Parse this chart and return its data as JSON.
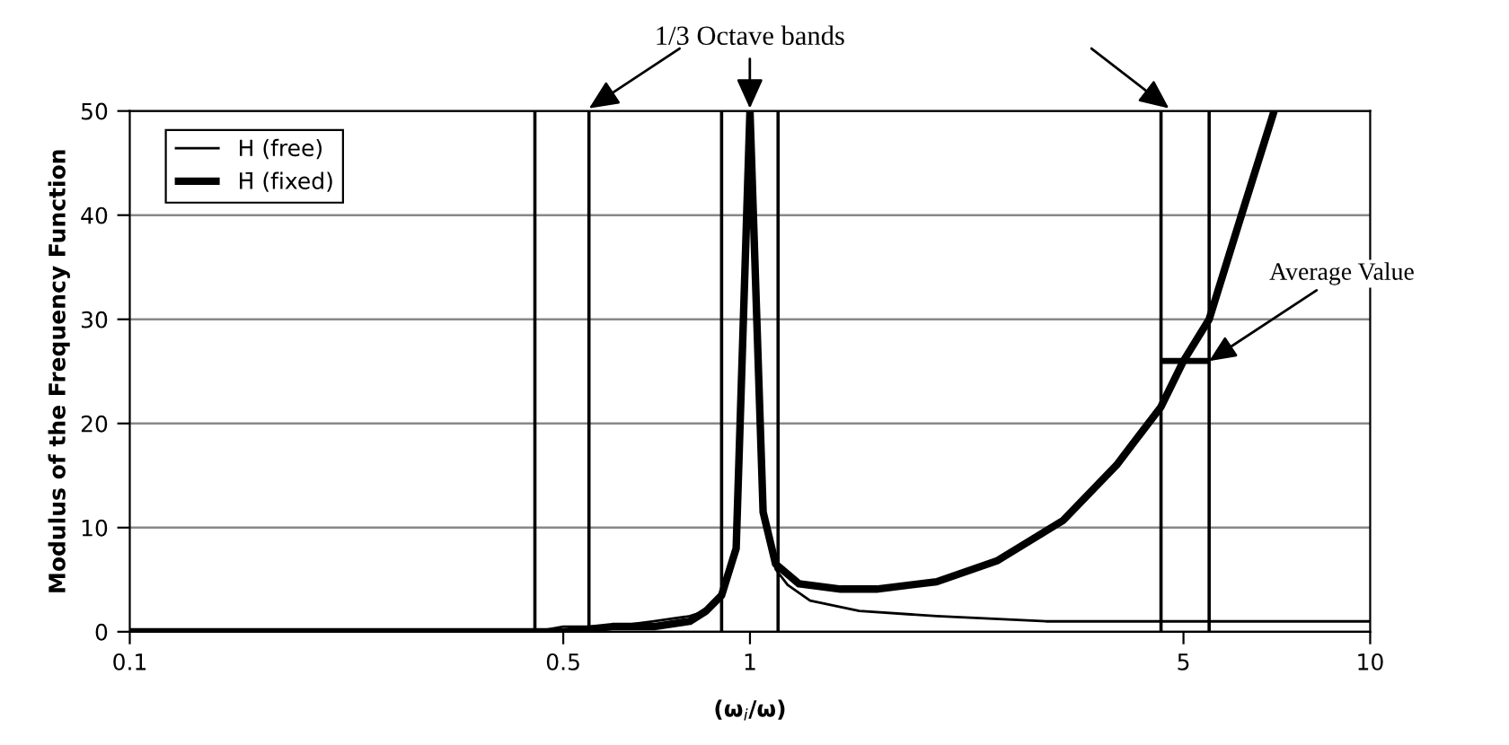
{
  "chart_data": {
    "type": "line",
    "xlabel": "(ω$_{i}$/ω)",
    "ylabel": "Modulus of the Frequency Function",
    "annotations": [
      "1/3 Octave bands",
      {
        "text": "Average Value",
        "x": 5.5,
        "y": 26
      }
    ],
    "log": "x",
    "xlim": [
      0.1,
      10
    ],
    "xticks": [
      0.1,
      0.5,
      1,
      5,
      10
    ],
    "ylim": [
      0,
      50
    ],
    "yticks": [
      0,
      10,
      20,
      30,
      40,
      50
    ],
    "grid": "y",
    "legend": "top left",
    "marker": "none",
    "line_style": "solid",
    "series": [
      {
        "name": "H (free)",
        "color": "#000000",
        "x": [
          0.1,
          0.3,
          0.45,
          0.5,
          0.6,
          0.7,
          0.8,
          0.85,
          0.9,
          0.95,
          1,
          1.05,
          1.1,
          1.15,
          1.25,
          1.5,
          2,
          3,
          5,
          10
        ],
        "values": [
          0,
          0,
          0,
          0.5,
          0.5,
          1,
          1.5,
          2,
          3.5,
          8,
          50,
          11.5,
          6,
          4.5,
          3,
          2,
          1.5,
          1,
          1,
          1
        ]
      },
      {
        "name": "H̄ (fixed)",
        "color": "#000000",
        "x": [
          0.1,
          0.3,
          0.45,
          0.5,
          0.6,
          0.7,
          0.8,
          0.85,
          0.9,
          0.95,
          1,
          1.05,
          1.1,
          1.2,
          1.4,
          1.6,
          2,
          2.5,
          3.2,
          3.9,
          4.6,
          5,
          5.5,
          6.2,
          7
        ],
        "values": [
          0,
          0,
          0,
          0,
          0.5,
          0.5,
          1,
          2,
          3.5,
          8,
          50,
          11.5,
          6.5,
          4.6,
          4.1,
          4.1,
          4.8,
          6.8,
          10.7,
          16,
          21.6,
          26,
          30,
          40,
          50
        ]
      },
      {
        "color": "#000000",
        "x": [
          4.6,
          5.5
        ],
        "values": [
          26,
          26
        ]
      }
    ],
    "ref_lines": [
      {
        "axis": "x",
        "value": 0.45
      },
      {
        "axis": "x",
        "value": 0.55
      },
      {
        "axis": "x",
        "value": 0.9
      },
      {
        "axis": "x",
        "value": 1.11
      },
      {
        "axis": "x",
        "value": 4.6
      },
      {
        "axis": "x",
        "value": 5.5
      }
    ]
  }
}
